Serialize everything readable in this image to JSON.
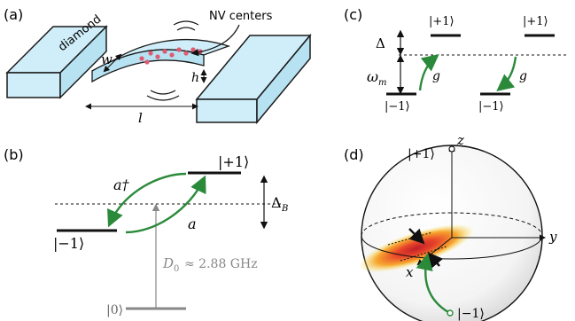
{
  "panels": {
    "a": {
      "label": "(a)",
      "diamond": "diamond",
      "nv_centers": "NV centers",
      "w": "w",
      "h": "h",
      "l": "l"
    },
    "b": {
      "label": "(b)",
      "level_plus": "|+1⟩",
      "level_minus": "|−1⟩",
      "level_zero": "|0⟩",
      "a_dag": "a†",
      "a": "a",
      "delta_b": "Δ",
      "delta_b_sub": "B",
      "d0_sym": "D",
      "d0_sub": "0",
      "d0_val": "≈ 2.88 GHz"
    },
    "c": {
      "label": "(c)",
      "plus_left": "|+1⟩",
      "plus_right": "|+1⟩",
      "minus_left": "|−1⟩",
      "minus_right": "|−1⟩",
      "delta": "Δ",
      "omega": "ω",
      "omega_sub": "m",
      "g_left": "g",
      "g_right": "g"
    },
    "d": {
      "label": "(d)",
      "plus": "|+1⟩",
      "minus": "|−1⟩",
      "z": "z",
      "y": "y",
      "x": "x"
    }
  },
  "colors": {
    "diamond_fill": "#cfeefa",
    "diamond_stroke": "#1a1a1a",
    "nv_dot": "#e05a72",
    "arrow_green": "#2a8a3a",
    "gray_level": "#888888",
    "level_black": "#111111"
  }
}
